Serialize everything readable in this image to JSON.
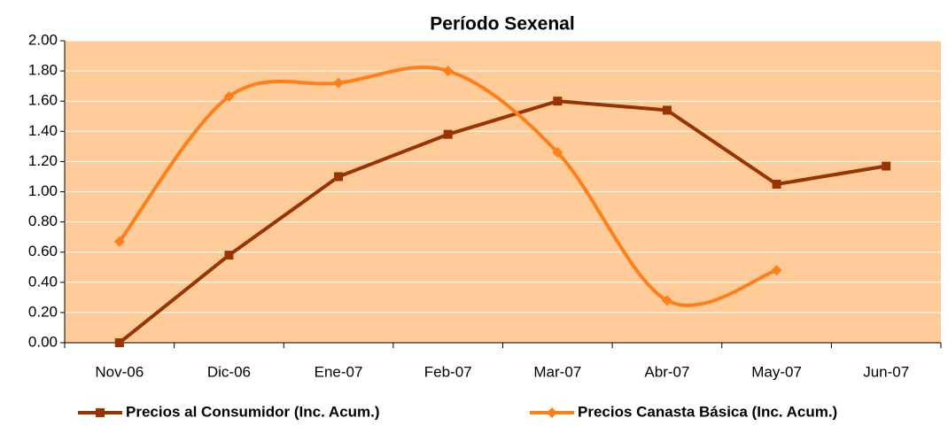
{
  "chart_data": {
    "type": "line",
    "title": "Período Sexenal",
    "categories": [
      "Nov-06",
      "Dic-06",
      "Ene-07",
      "Feb-07",
      "Mar-07",
      "Abr-07",
      "May-07",
      "Jun-07"
    ],
    "series": [
      {
        "name": "Precios al Consumidor (Inc. Acum.)",
        "color": "#993300",
        "marker": "square",
        "smooth": false,
        "values": [
          0.0,
          0.58,
          1.1,
          1.38,
          1.6,
          1.54,
          1.05,
          1.17
        ]
      },
      {
        "name": "Precios Canasta Básica (Inc. Acum.)",
        "color": "#FF7F1A",
        "marker": "diamond",
        "smooth": true,
        "values": [
          0.67,
          1.63,
          1.72,
          1.8,
          1.26,
          0.28,
          0.48,
          null
        ]
      }
    ],
    "ylim": [
      0,
      2
    ],
    "yticks": [
      {
        "value": 0,
        "label": "0.00"
      },
      {
        "value": 0.2,
        "label": "0.20"
      },
      {
        "value": 0.4,
        "label": "0.40"
      },
      {
        "value": 0.6,
        "label": "0.60"
      },
      {
        "value": 0.8,
        "label": "0.80"
      },
      {
        "value": 1,
        "label": "1.00"
      },
      {
        "value": 1.2,
        "label": "1.20"
      },
      {
        "value": 1.4,
        "label": "1.40"
      },
      {
        "value": 1.6,
        "label": "1.60"
      },
      {
        "value": 1.8,
        "label": "1.80"
      },
      {
        "value": 2,
        "label": "2.00"
      }
    ],
    "grid": true,
    "plot_background": "#FFCC99",
    "legend": "bottom"
  }
}
